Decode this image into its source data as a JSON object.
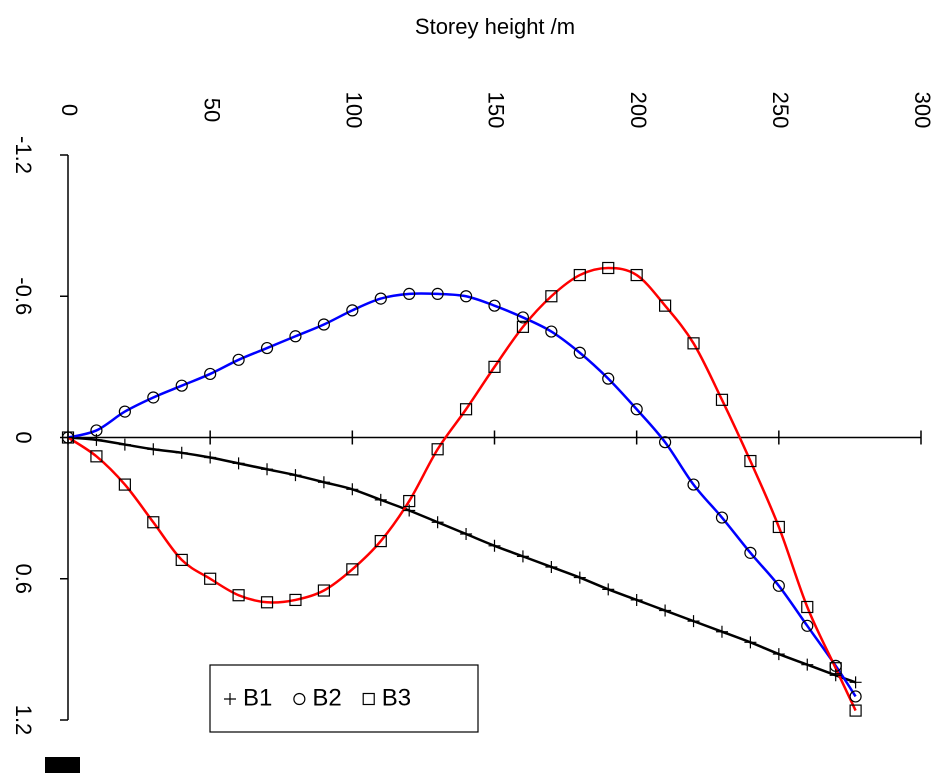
{
  "chart_data": {
    "type": "line",
    "x_label": "Storey height /m",
    "x": [
      0,
      10,
      20,
      30,
      40,
      50,
      60,
      70,
      80,
      90,
      100,
      110,
      120,
      130,
      140,
      150,
      160,
      170,
      180,
      190,
      200,
      210,
      220,
      230,
      240,
      250,
      260,
      270,
      277
    ],
    "series": [
      {
        "name": "B1",
        "color": "#000000",
        "marker": "plus",
        "values": [
          0,
          0.01,
          0.03,
          0.05,
          0.065,
          0.085,
          0.11,
          0.135,
          0.16,
          0.19,
          0.22,
          0.265,
          0.31,
          0.36,
          0.41,
          0.46,
          0.505,
          0.55,
          0.595,
          0.645,
          0.69,
          0.735,
          0.78,
          0.825,
          0.87,
          0.92,
          0.965,
          1.01,
          1.04
        ]
      },
      {
        "name": "B2",
        "color": "#0000ff",
        "marker": "circle",
        "values": [
          0,
          -0.03,
          -0.11,
          -0.17,
          -0.22,
          -0.27,
          -0.33,
          -0.38,
          -0.43,
          -0.48,
          -0.54,
          -0.59,
          -0.61,
          -0.61,
          -0.6,
          -0.56,
          -0.51,
          -0.45,
          -0.36,
          -0.25,
          -0.12,
          0.02,
          0.2,
          0.34,
          0.49,
          0.63,
          0.8,
          0.97,
          1.1
        ]
      },
      {
        "name": "B3",
        "color": "#ff0000",
        "marker": "square",
        "values": [
          0,
          0.08,
          0.2,
          0.36,
          0.52,
          0.6,
          0.67,
          0.7,
          0.69,
          0.65,
          0.56,
          0.44,
          0.27,
          0.05,
          -0.12,
          -0.3,
          -0.47,
          -0.6,
          -0.69,
          -0.72,
          -0.69,
          -0.56,
          -0.4,
          -0.16,
          0.1,
          0.38,
          0.72,
          0.98,
          1.16
        ]
      }
    ],
    "xlim": [
      0,
      300
    ],
    "xticks": [
      0,
      50,
      100,
      150,
      200,
      250,
      300
    ],
    "ylim": [
      -1.2,
      1.2
    ],
    "yticks": [
      -1.2,
      -0.6,
      0,
      0.6,
      1.2
    ],
    "y_reversed": true,
    "grid": false,
    "legend": "bottom-left"
  }
}
